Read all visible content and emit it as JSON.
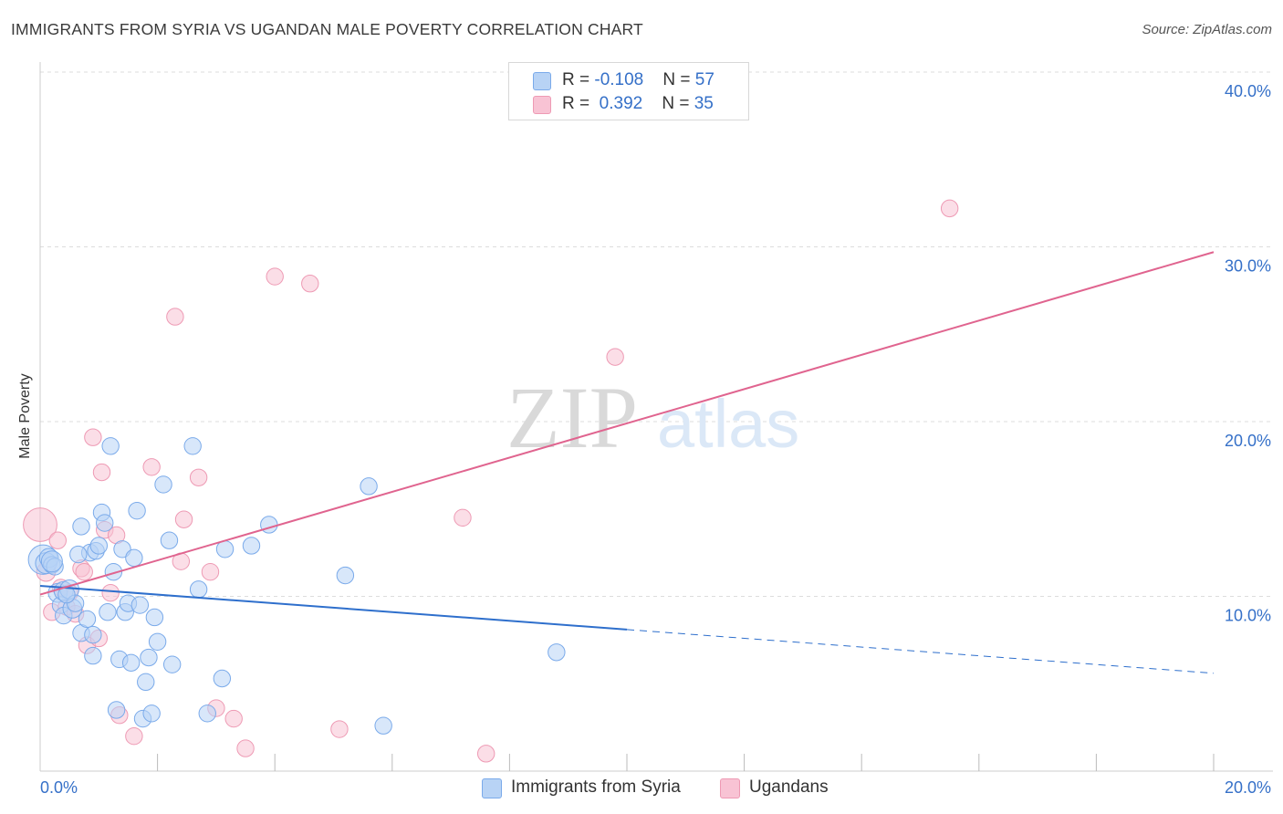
{
  "title": "IMMIGRANTS FROM SYRIA VS UGANDAN MALE POVERTY CORRELATION CHART",
  "source": "Source: ZipAtlas.com",
  "watermark": {
    "zip": "ZIP",
    "atlas": "atlas"
  },
  "legend_top": {
    "rows": [
      {
        "r_label": "R = ",
        "r_value": "-0.108",
        "n_label": "N = ",
        "n_value": "57"
      },
      {
        "r_label": "R = ",
        "r_value": " 0.392",
        "n_label": "N = ",
        "n_value": "35"
      }
    ]
  },
  "colors": {
    "syria_fill": "#b8d3f5",
    "syria_stroke": "#7aaaea",
    "syria_line": "#2e6fcc",
    "uganda_fill": "#f8c3d4",
    "uganda_stroke": "#ee9ab4",
    "uganda_line": "#e0648f",
    "tick_text": "#3570c8",
    "grid": "#dddddd"
  },
  "chart_data": {
    "type": "scatter",
    "title": "IMMIGRANTS FROM SYRIA VS UGANDAN MALE POVERTY CORRELATION CHART",
    "xlabel": "",
    "ylabel": "Male Poverty",
    "xlim": [
      0,
      20
    ],
    "ylim": [
      0,
      40
    ],
    "x_tick_labels": [
      "0.0%",
      "20.0%"
    ],
    "y_ticks": [
      10,
      20,
      30,
      40
    ],
    "y_tick_labels": [
      "10.0%",
      "20.0%",
      "30.0%",
      "40.0%"
    ],
    "series": [
      {
        "name": "Immigrants from Syria",
        "r": -0.108,
        "n": 57,
        "trend": {
          "x0": 0,
          "y0": 10.6,
          "x1": 10,
          "y1": 8.1,
          "dash_x1": 20,
          "dash_y1": 5.6
        },
        "points": [
          [
            0.05,
            12.1,
            14
          ],
          [
            0.1,
            11.9,
            10
          ],
          [
            0.15,
            12.2,
            9
          ],
          [
            0.2,
            11.8,
            8
          ],
          [
            0.25,
            11.7,
            8
          ],
          [
            0.3,
            10.2,
            9
          ],
          [
            0.35,
            9.5,
            8
          ],
          [
            0.4,
            10.3,
            9
          ],
          [
            0.4,
            8.9,
            8
          ],
          [
            0.5,
            10.4,
            9
          ],
          [
            0.55,
            9.3,
            9
          ],
          [
            0.6,
            9.6,
            8
          ],
          [
            0.7,
            7.9,
            8
          ],
          [
            0.7,
            14.0,
            8
          ],
          [
            0.8,
            8.7,
            8
          ],
          [
            0.85,
            12.5,
            8
          ],
          [
            0.9,
            7.8,
            8
          ],
          [
            0.9,
            6.6,
            8
          ],
          [
            0.95,
            12.6,
            8
          ],
          [
            1.0,
            12.9,
            8
          ],
          [
            1.05,
            14.8,
            8
          ],
          [
            1.1,
            14.2,
            8
          ],
          [
            1.15,
            9.1,
            8
          ],
          [
            1.2,
            18.6,
            8
          ],
          [
            1.25,
            11.4,
            8
          ],
          [
            1.3,
            3.5,
            8
          ],
          [
            1.35,
            6.4,
            8
          ],
          [
            1.4,
            12.7,
            8
          ],
          [
            1.45,
            9.1,
            8
          ],
          [
            1.5,
            9.6,
            8
          ],
          [
            1.55,
            6.2,
            8
          ],
          [
            1.6,
            12.2,
            8
          ],
          [
            1.65,
            14.9,
            8
          ],
          [
            1.7,
            9.5,
            8
          ],
          [
            1.75,
            3.0,
            8
          ],
          [
            1.8,
            5.1,
            8
          ],
          [
            1.85,
            6.5,
            8
          ],
          [
            1.9,
            3.3,
            8
          ],
          [
            1.95,
            8.8,
            8
          ],
          [
            2.0,
            7.4,
            8
          ],
          [
            2.1,
            16.4,
            8
          ],
          [
            2.2,
            13.2,
            8
          ],
          [
            2.25,
            6.1,
            8
          ],
          [
            2.6,
            18.6,
            8
          ],
          [
            2.7,
            10.4,
            8
          ],
          [
            2.85,
            3.3,
            8
          ],
          [
            3.1,
            5.3,
            8
          ],
          [
            3.15,
            12.7,
            8
          ],
          [
            3.6,
            12.9,
            8
          ],
          [
            3.9,
            14.1,
            8
          ],
          [
            5.2,
            11.2,
            8
          ],
          [
            5.6,
            16.3,
            8
          ],
          [
            5.85,
            2.6,
            8
          ],
          [
            8.8,
            6.8,
            8
          ],
          [
            0.2,
            12.0,
            10
          ],
          [
            0.45,
            10.1,
            8
          ],
          [
            0.65,
            12.4,
            8
          ]
        ]
      },
      {
        "name": "Ugandans",
        "r": 0.392,
        "n": 35,
        "trend": {
          "x0": 0,
          "y0": 10.1,
          "x1": 20,
          "y1": 29.7
        },
        "points": [
          [
            0.0,
            14.1,
            16
          ],
          [
            0.1,
            11.4,
            9
          ],
          [
            0.2,
            9.1,
            8
          ],
          [
            0.3,
            13.2,
            8
          ],
          [
            0.35,
            10.5,
            8
          ],
          [
            0.45,
            9.4,
            8
          ],
          [
            0.5,
            10.2,
            8
          ],
          [
            0.6,
            9.0,
            8
          ],
          [
            0.7,
            11.6,
            8
          ],
          [
            0.75,
            11.4,
            8
          ],
          [
            0.8,
            7.2,
            8
          ],
          [
            0.9,
            19.1,
            8
          ],
          [
            1.0,
            7.6,
            8
          ],
          [
            1.05,
            17.1,
            8
          ],
          [
            1.1,
            13.8,
            8
          ],
          [
            1.2,
            10.2,
            8
          ],
          [
            1.3,
            13.5,
            8
          ],
          [
            1.35,
            3.2,
            8
          ],
          [
            1.6,
            2.0,
            8
          ],
          [
            1.9,
            17.4,
            8
          ],
          [
            2.3,
            26.0,
            8
          ],
          [
            2.4,
            12.0,
            8
          ],
          [
            2.45,
            14.4,
            8
          ],
          [
            2.7,
            16.8,
            8
          ],
          [
            2.9,
            11.4,
            8
          ],
          [
            3.0,
            3.6,
            8
          ],
          [
            3.3,
            3.0,
            8
          ],
          [
            3.5,
            1.3,
            8
          ],
          [
            4.0,
            28.3,
            8
          ],
          [
            4.6,
            27.9,
            8
          ],
          [
            5.1,
            2.4,
            8
          ],
          [
            7.2,
            14.5,
            8
          ],
          [
            7.6,
            1.0,
            8
          ],
          [
            9.8,
            23.7,
            8
          ],
          [
            15.5,
            32.2,
            8
          ]
        ]
      }
    ]
  },
  "bottom_legend": [
    {
      "label": "Immigrants from Syria"
    },
    {
      "label": "Ugandans"
    }
  ]
}
